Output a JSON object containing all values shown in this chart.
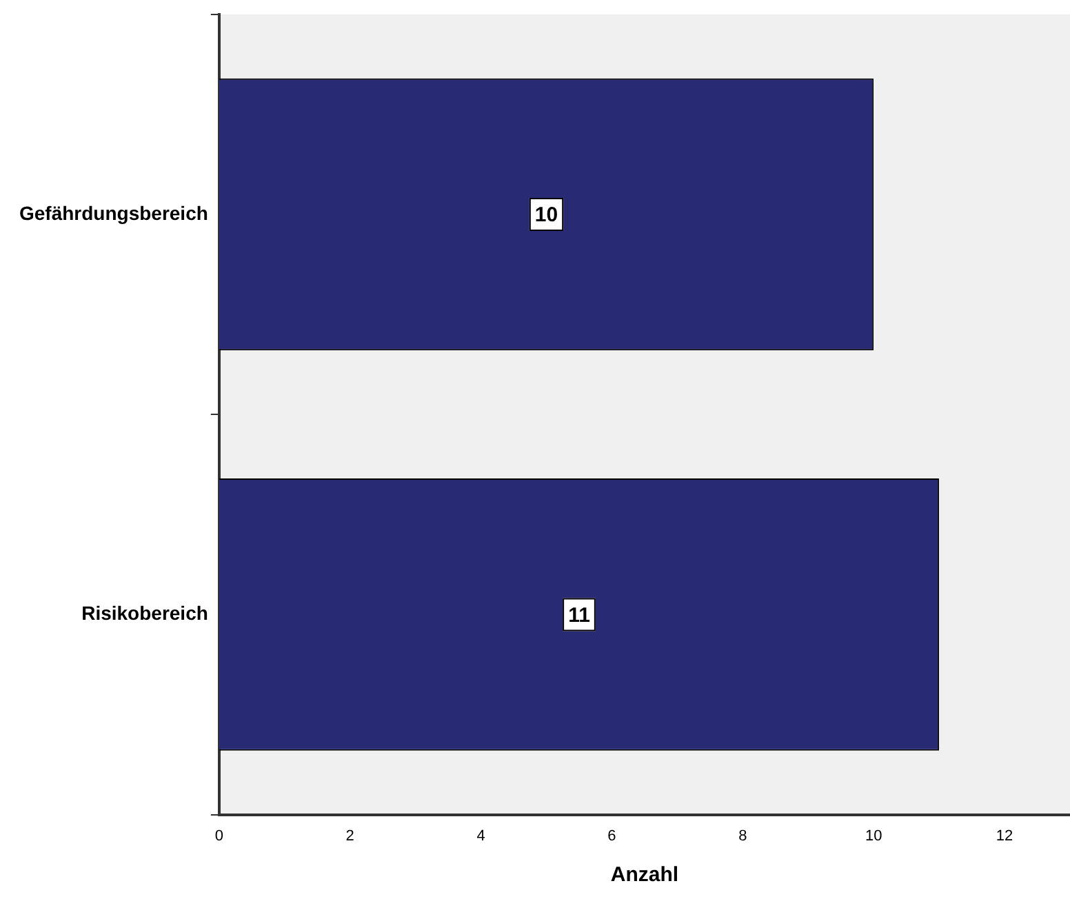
{
  "chart_data": {
    "type": "bar",
    "orientation": "horizontal",
    "xlabel": "Anzahl",
    "categories": [
      "Gefährdungsbereich",
      "Risikobereich"
    ],
    "values": [
      10,
      11
    ],
    "color": "#282a73",
    "xlim": [
      0,
      13
    ],
    "xticks": [
      0,
      2,
      4,
      6,
      8,
      10,
      12
    ],
    "grid": false,
    "legend": false,
    "data_labels": true
  }
}
